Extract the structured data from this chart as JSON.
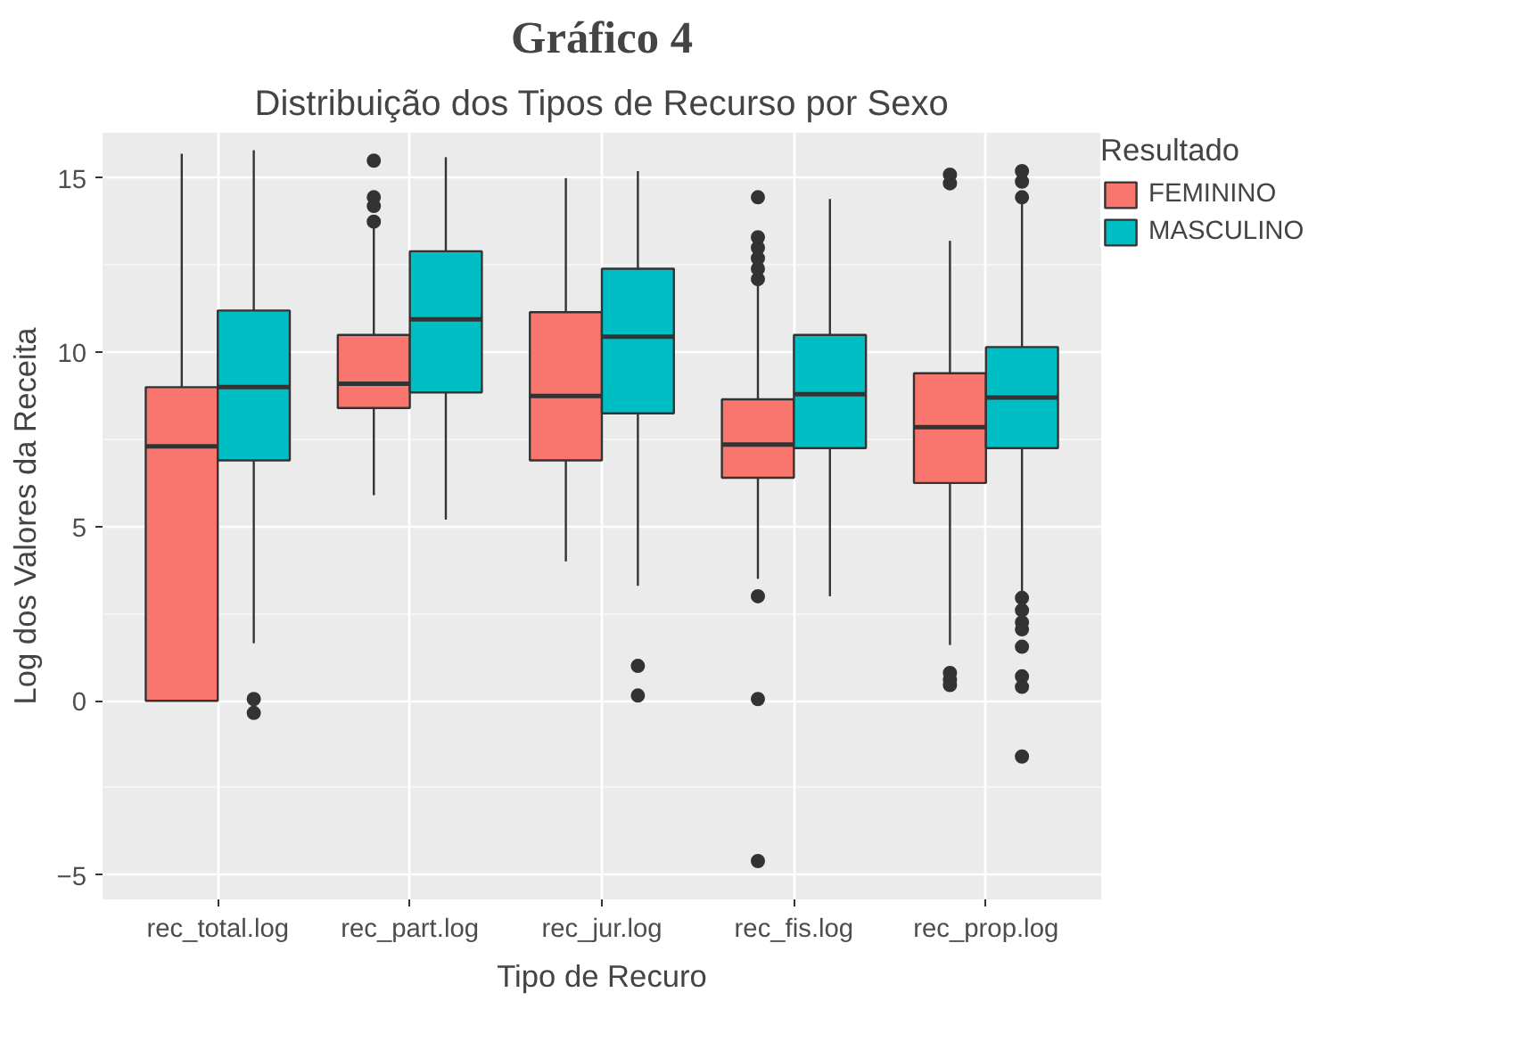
{
  "chart_data": {
    "type": "box",
    "title": "Gráfico 4",
    "subtitle": "Distribuição dos Tipos de Recurso por Sexo",
    "xlabel": "Tipo de Recuro",
    "ylabel": "Log dos Valores da Receita",
    "legend_title": "Resultado",
    "categories": [
      "rec_total.log",
      "rec_part.log",
      "rec_jur.log",
      "rec_fis.log",
      "rec_prop.log"
    ],
    "series": [
      {
        "name": "FEMININO",
        "color": "#f8766d",
        "boxes": [
          {
            "low": 0,
            "q1": 0,
            "median": 7.3,
            "q3": 9.0,
            "high": 15.7
          },
          {
            "low": 5.9,
            "q1": 8.4,
            "median": 9.1,
            "q3": 10.5,
            "high": 13.6,
            "outliers": [
              13.75,
              14.2,
              14.45,
              15.5
            ]
          },
          {
            "low": 4.0,
            "q1": 6.9,
            "median": 8.75,
            "q3": 11.15,
            "high": 15.0
          },
          {
            "low": 3.5,
            "q1": 6.4,
            "median": 7.35,
            "q3": 8.65,
            "high": 12.0,
            "outliers": [
              12.1,
              12.4,
              12.7,
              13.0,
              13.3,
              14.45,
              3.0,
              0.05,
              -4.6
            ]
          },
          {
            "low": 1.6,
            "q1": 6.25,
            "median": 7.85,
            "q3": 9.4,
            "high": 13.2,
            "outliers": [
              14.85,
              15.1,
              0.8,
              0.6,
              0.45
            ]
          }
        ]
      },
      {
        "name": "MASCULINO",
        "color": "#00bfc4",
        "boxes": [
          {
            "low": 1.65,
            "q1": 6.9,
            "median": 9.0,
            "q3": 11.2,
            "high": 15.8,
            "outliers": [
              0.05,
              -0.35
            ]
          },
          {
            "low": 5.2,
            "q1": 8.85,
            "median": 10.95,
            "q3": 12.9,
            "high": 15.6
          },
          {
            "low": 3.3,
            "q1": 8.25,
            "median": 10.45,
            "q3": 12.4,
            "high": 15.2,
            "outliers": [
              1.0,
              0.15
            ]
          },
          {
            "low": 3.0,
            "q1": 7.25,
            "median": 8.8,
            "q3": 10.5,
            "high": 14.4
          },
          {
            "low": 3.0,
            "q1": 7.25,
            "median": 8.7,
            "q3": 10.15,
            "high": 14.3,
            "outliers": [
              14.45,
              14.9,
              15.2,
              2.95,
              2.6,
              2.25,
              2.05,
              1.55,
              0.7,
              0.4,
              -1.6
            ]
          }
        ]
      }
    ],
    "ylim": [
      -5.7,
      16.3
    ],
    "yticks": [
      -5,
      0,
      5,
      10,
      15
    ],
    "grid": true,
    "legend": "right"
  }
}
